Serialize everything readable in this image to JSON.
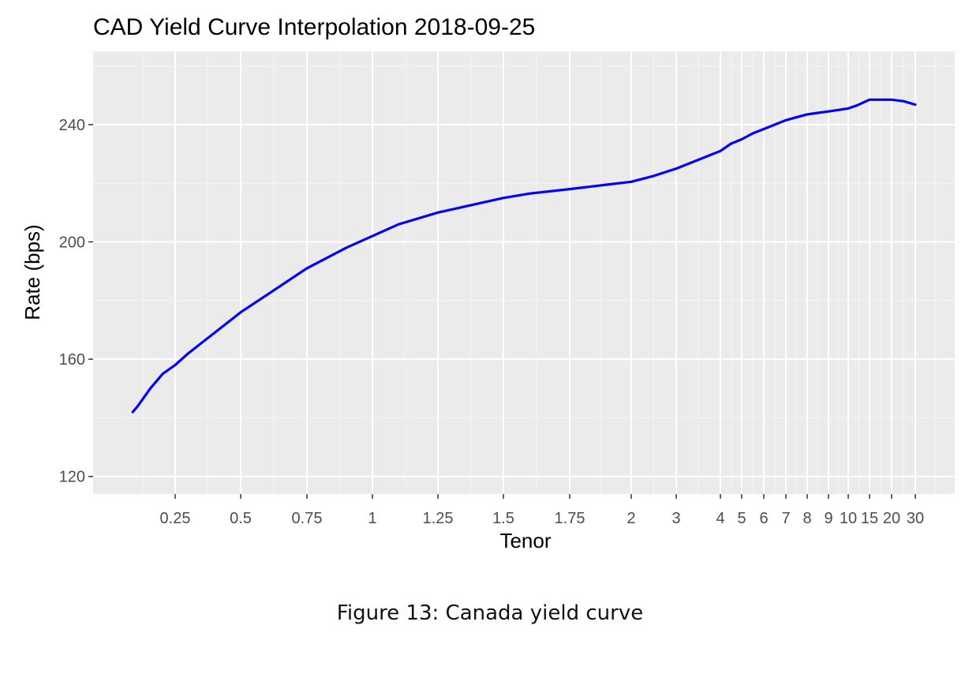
{
  "figure_caption": "Figure 13:  Canada yield curve",
  "chart_data": {
    "type": "line",
    "title": "CAD Yield Curve Interpolation 2018-09-25",
    "xlabel": "Tenor",
    "ylabel": "Rate (bps)",
    "x_scale": "categorical-tenor",
    "x_ticks": [
      "0.25",
      "0.5",
      "0.75",
      "1",
      "1.25",
      "1.5",
      "1.75",
      "2",
      "3",
      "4",
      "5",
      "6",
      "7",
      "8",
      "9",
      "10",
      "15",
      "20",
      "30"
    ],
    "y_ticks": [
      120,
      160,
      200,
      240
    ],
    "ylim": [
      114,
      265
    ],
    "grid": true,
    "line_color": "#0000ff",
    "panel_color": "#ebebeb",
    "series": [
      {
        "x": [
          0.08,
          0.1,
          0.15,
          0.2,
          0.25,
          0.3,
          0.4,
          0.5,
          0.6,
          0.75,
          0.9,
          1.0,
          1.1,
          1.25,
          1.4,
          1.5,
          1.6,
          1.75,
          1.9,
          2,
          2.5,
          3,
          3.5,
          4,
          4.5,
          5,
          5.5,
          6,
          6.5,
          7,
          7.5,
          8,
          8.5,
          9,
          10,
          12,
          15,
          17.5,
          20,
          25,
          30
        ],
        "y": [
          142,
          144,
          150,
          155,
          158,
          162,
          169,
          176,
          182,
          191,
          198,
          202,
          206,
          210,
          213,
          215,
          216.5,
          218,
          219.5,
          220.5,
          222.5,
          225,
          228,
          231,
          233.5,
          235,
          237,
          238.5,
          240,
          241.5,
          242.5,
          243.5,
          244,
          244.5,
          245.5,
          246.5,
          248.5,
          248.5,
          248.5,
          248,
          246.8
        ]
      }
    ]
  }
}
